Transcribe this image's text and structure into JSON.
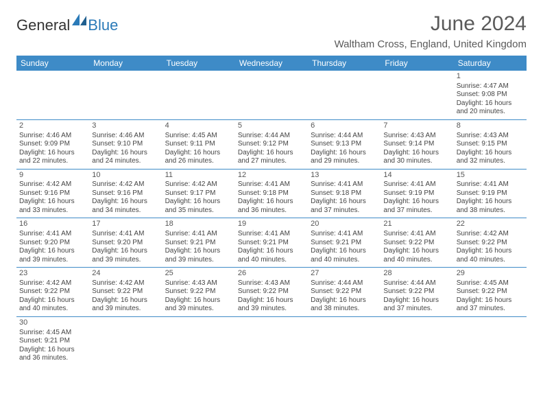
{
  "logo": {
    "general": "General",
    "blue": "Blue"
  },
  "header": {
    "title": "June 2024",
    "location": "Waltham Cross, England, United Kingdom"
  },
  "colors": {
    "header_bg": "#3e8bc7",
    "header_text": "#ffffff",
    "border": "#3e8bc7",
    "title_color": "#5a5a5a",
    "body_text": "#444444",
    "logo_blue": "#2a7ab8"
  },
  "dayNames": [
    "Sunday",
    "Monday",
    "Tuesday",
    "Wednesday",
    "Thursday",
    "Friday",
    "Saturday"
  ],
  "weeks": [
    [
      null,
      null,
      null,
      null,
      null,
      null,
      {
        "d": "1",
        "sr": "4:47 AM",
        "ss": "9:08 PM",
        "dl": "16 hours and 20 minutes."
      }
    ],
    [
      {
        "d": "2",
        "sr": "4:46 AM",
        "ss": "9:09 PM",
        "dl": "16 hours and 22 minutes."
      },
      {
        "d": "3",
        "sr": "4:46 AM",
        "ss": "9:10 PM",
        "dl": "16 hours and 24 minutes."
      },
      {
        "d": "4",
        "sr": "4:45 AM",
        "ss": "9:11 PM",
        "dl": "16 hours and 26 minutes."
      },
      {
        "d": "5",
        "sr": "4:44 AM",
        "ss": "9:12 PM",
        "dl": "16 hours and 27 minutes."
      },
      {
        "d": "6",
        "sr": "4:44 AM",
        "ss": "9:13 PM",
        "dl": "16 hours and 29 minutes."
      },
      {
        "d": "7",
        "sr": "4:43 AM",
        "ss": "9:14 PM",
        "dl": "16 hours and 30 minutes."
      },
      {
        "d": "8",
        "sr": "4:43 AM",
        "ss": "9:15 PM",
        "dl": "16 hours and 32 minutes."
      }
    ],
    [
      {
        "d": "9",
        "sr": "4:42 AM",
        "ss": "9:16 PM",
        "dl": "16 hours and 33 minutes."
      },
      {
        "d": "10",
        "sr": "4:42 AM",
        "ss": "9:16 PM",
        "dl": "16 hours and 34 minutes."
      },
      {
        "d": "11",
        "sr": "4:42 AM",
        "ss": "9:17 PM",
        "dl": "16 hours and 35 minutes."
      },
      {
        "d": "12",
        "sr": "4:41 AM",
        "ss": "9:18 PM",
        "dl": "16 hours and 36 minutes."
      },
      {
        "d": "13",
        "sr": "4:41 AM",
        "ss": "9:18 PM",
        "dl": "16 hours and 37 minutes."
      },
      {
        "d": "14",
        "sr": "4:41 AM",
        "ss": "9:19 PM",
        "dl": "16 hours and 37 minutes."
      },
      {
        "d": "15",
        "sr": "4:41 AM",
        "ss": "9:19 PM",
        "dl": "16 hours and 38 minutes."
      }
    ],
    [
      {
        "d": "16",
        "sr": "4:41 AM",
        "ss": "9:20 PM",
        "dl": "16 hours and 39 minutes."
      },
      {
        "d": "17",
        "sr": "4:41 AM",
        "ss": "9:20 PM",
        "dl": "16 hours and 39 minutes."
      },
      {
        "d": "18",
        "sr": "4:41 AM",
        "ss": "9:21 PM",
        "dl": "16 hours and 39 minutes."
      },
      {
        "d": "19",
        "sr": "4:41 AM",
        "ss": "9:21 PM",
        "dl": "16 hours and 40 minutes."
      },
      {
        "d": "20",
        "sr": "4:41 AM",
        "ss": "9:21 PM",
        "dl": "16 hours and 40 minutes."
      },
      {
        "d": "21",
        "sr": "4:41 AM",
        "ss": "9:22 PM",
        "dl": "16 hours and 40 minutes."
      },
      {
        "d": "22",
        "sr": "4:42 AM",
        "ss": "9:22 PM",
        "dl": "16 hours and 40 minutes."
      }
    ],
    [
      {
        "d": "23",
        "sr": "4:42 AM",
        "ss": "9:22 PM",
        "dl": "16 hours and 40 minutes."
      },
      {
        "d": "24",
        "sr": "4:42 AM",
        "ss": "9:22 PM",
        "dl": "16 hours and 39 minutes."
      },
      {
        "d": "25",
        "sr": "4:43 AM",
        "ss": "9:22 PM",
        "dl": "16 hours and 39 minutes."
      },
      {
        "d": "26",
        "sr": "4:43 AM",
        "ss": "9:22 PM",
        "dl": "16 hours and 39 minutes."
      },
      {
        "d": "27",
        "sr": "4:44 AM",
        "ss": "9:22 PM",
        "dl": "16 hours and 38 minutes."
      },
      {
        "d": "28",
        "sr": "4:44 AM",
        "ss": "9:22 PM",
        "dl": "16 hours and 37 minutes."
      },
      {
        "d": "29",
        "sr": "4:45 AM",
        "ss": "9:22 PM",
        "dl": "16 hours and 37 minutes."
      }
    ],
    [
      {
        "d": "30",
        "sr": "4:45 AM",
        "ss": "9:21 PM",
        "dl": "16 hours and 36 minutes."
      },
      null,
      null,
      null,
      null,
      null,
      null
    ]
  ],
  "labels": {
    "sunrise": "Sunrise:",
    "sunset": "Sunset:",
    "daylight": "Daylight:"
  }
}
